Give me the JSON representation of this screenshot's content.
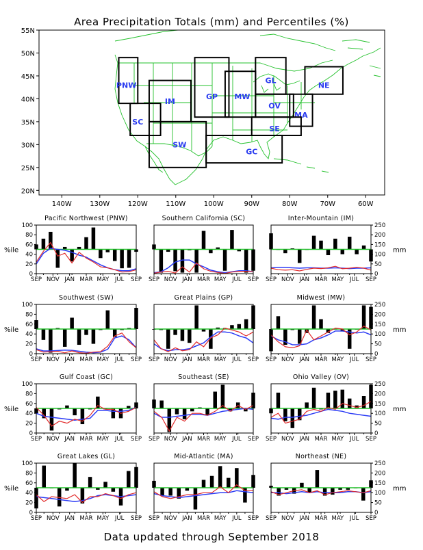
{
  "title": "Area Precipitation Totals (mm) and Percentiles (%)",
  "footer": "Data updated through September 2018",
  "map": {
    "lat_ticks": [
      "55N",
      "50N",
      "45N",
      "40N",
      "35N",
      "30N",
      "25N",
      "20N"
    ],
    "lon_ticks": [
      "140W",
      "130W",
      "120W",
      "110W",
      "100W",
      "90W",
      "80W",
      "70W",
      "60W"
    ],
    "lat_range": [
      19,
      55
    ],
    "lon_range": [
      -146,
      -55
    ],
    "regions": [
      {
        "code": "PNW",
        "lon": [
          -125,
          -120
        ],
        "lat": [
          39,
          49
        ],
        "label_at": [
          -123,
          43
        ]
      },
      {
        "code": "SC",
        "lon": [
          -122,
          -114
        ],
        "lat": [
          32,
          39
        ],
        "label_at": [
          -120,
          35
        ]
      },
      {
        "code": "IM",
        "lon": [
          -117,
          -106
        ],
        "lat": [
          35,
          44
        ],
        "label_at": [
          -111.5,
          39.5
        ]
      },
      {
        "code": "SW",
        "lon": [
          -117,
          -102
        ],
        "lat": [
          25,
          35
        ],
        "label_at": [
          -109,
          30
        ]
      },
      {
        "code": "GP",
        "lon": [
          -105,
          -96
        ],
        "lat": [
          36,
          49
        ],
        "label_at": [
          -100.5,
          40.5
        ]
      },
      {
        "code": "MW",
        "lon": [
          -97,
          -89
        ],
        "lat": [
          36,
          46
        ],
        "label_at": [
          -92.5,
          40.5
        ]
      },
      {
        "code": "GL",
        "lon": [
          -89,
          -81
        ],
        "lat": [
          41,
          49
        ],
        "label_at": [
          -85,
          44
        ]
      },
      {
        "code": "OV",
        "lon": [
          -89,
          -79
        ],
        "lat": [
          36,
          41
        ],
        "label_at": [
          -84,
          38.5
        ]
      },
      {
        "code": "NE",
        "lon": [
          -76,
          -66
        ],
        "lat": [
          41,
          47
        ],
        "label_at": [
          -71,
          43
        ]
      },
      {
        "code": "MA",
        "lon": [
          -80,
          -74
        ],
        "lat": [
          34,
          41
        ],
        "label_at": [
          -77,
          36.5
        ]
      },
      {
        "code": "SE",
        "lon": [
          -90,
          -77
        ],
        "lat": [
          32,
          36
        ],
        "label_at": [
          -84,
          33.5
        ]
      },
      {
        "code": "GC",
        "lon": [
          -102,
          -82
        ],
        "lat": [
          26,
          32
        ],
        "label_at": [
          -90,
          28.5
        ]
      }
    ]
  },
  "colors": {
    "percentile_bar": "#000000",
    "threshold": "#22c02a",
    "total": "#e22b2b",
    "normal": "#2c3cf5",
    "map_lines": "#22c02a",
    "region_label": "#2a3cf0"
  },
  "axis": {
    "ylabel_left": "%ile",
    "ylabel_right": "mm",
    "months": [
      "SEP",
      "NOV",
      "JAN",
      "MAR",
      "MAY",
      "JUL",
      "SEP"
    ],
    "left_ticks": [
      0,
      20,
      40,
      60,
      80,
      100
    ],
    "right_ticks": [
      0,
      50,
      100,
      150,
      200,
      250
    ]
  },
  "chart_data": [
    {
      "type": "bar",
      "title": "Pacific Northwest (PNW)",
      "percentile": [
        60,
        72,
        86,
        12,
        55,
        25,
        55,
        75,
        95,
        32,
        44,
        26,
        11,
        12,
        45
      ],
      "total_mm": [
        60,
        115,
        160,
        90,
        105,
        55,
        110,
        80,
        60,
        35,
        30,
        20,
        8,
        10,
        20
      ],
      "normal_mm": [
        50,
        105,
        130,
        125,
        120,
        110,
        95,
        85,
        65,
        45,
        30,
        20,
        15,
        15,
        25
      ]
    },
    {
      "type": "bar",
      "title": "Southern California (SC)",
      "percentile": [
        60,
        2,
        45,
        5,
        2,
        48,
        2,
        88,
        42,
        54,
        6,
        90,
        46,
        2,
        6
      ],
      "total_mm": [
        2,
        8,
        12,
        3,
        35,
        8,
        55,
        25,
        12,
        6,
        1,
        8,
        12,
        12,
        10
      ],
      "normal_mm": [
        5,
        10,
        30,
        60,
        70,
        70,
        50,
        35,
        18,
        10,
        5,
        10,
        15,
        15,
        10
      ],
      "right_ticks": false
    },
    {
      "type": "bar",
      "title": "Inter-Mountain (IM)",
      "percentile": [
        83,
        50,
        42,
        52,
        22,
        50,
        78,
        68,
        38,
        72,
        40,
        76,
        40,
        58,
        25
      ],
      "total_mm": [
        28,
        20,
        18,
        20,
        14,
        22,
        28,
        26,
        30,
        38,
        25,
        28,
        32,
        28,
        18
      ],
      "normal_mm": [
        30,
        32,
        32,
        30,
        28,
        30,
        30,
        28,
        28,
        30,
        28,
        26,
        28,
        28,
        30
      ]
    },
    {
      "type": "bar",
      "title": "Southwest (SW)",
      "percentile": [
        68,
        28,
        2,
        52,
        14,
        73,
        18,
        38,
        20,
        48,
        88,
        34,
        48,
        52,
        93
      ],
      "total_mm": [
        20,
        8,
        10,
        12,
        4,
        14,
        5,
        2,
        8,
        10,
        38,
        90,
        105,
        60,
        30
      ],
      "normal_mm": [
        25,
        14,
        14,
        16,
        18,
        17,
        12,
        8,
        5,
        8,
        22,
        80,
        90,
        70,
        30
      ]
    },
    {
      "type": "bar",
      "title": "Great Plains (GP)",
      "percentile": [
        50,
        48,
        10,
        38,
        26,
        22,
        98,
        45,
        10,
        53,
        52,
        58,
        60,
        70,
        98
      ],
      "total_mm": [
        70,
        25,
        10,
        30,
        15,
        20,
        60,
        35,
        80,
        95,
        130,
        120,
        110,
        90,
        110
      ],
      "normal_mm": [
        50,
        25,
        15,
        20,
        20,
        25,
        40,
        55,
        85,
        110,
        110,
        105,
        90,
        80,
        55
      ],
      "right_ticks": false
    },
    {
      "type": "bar",
      "title": "Midwest (MW)",
      "percentile": [
        5,
        76,
        18,
        48,
        20,
        42,
        98,
        70,
        42,
        50,
        45,
        10,
        50,
        98,
        95
      ],
      "total_mm": [
        95,
        60,
        35,
        30,
        40,
        120,
        70,
        90,
        110,
        130,
        125,
        95,
        110,
        140,
        120
      ],
      "normal_mm": [
        90,
        70,
        60,
        45,
        45,
        50,
        70,
        80,
        95,
        115,
        115,
        110,
        105,
        110,
        95
      ]
    },
    {
      "type": "bar",
      "title": "Gulf Coast (GC)",
      "percentile": [
        40,
        30,
        5,
        48,
        56,
        36,
        18,
        48,
        74,
        48,
        30,
        30,
        55,
        62
      ],
      "total_mm": [
        130,
        90,
        35,
        60,
        50,
        70,
        60,
        90,
        140,
        120,
        120,
        100,
        110,
        130
      ],
      "normal_mm": [
        100,
        85,
        80,
        75,
        70,
        65,
        70,
        75,
        115,
        115,
        110,
        110,
        115,
        130
      ]
    },
    {
      "type": "bar",
      "title": "Southeast (SE)",
      "percentile": [
        68,
        66,
        2,
        38,
        28,
        44,
        52,
        36,
        84,
        98,
        44,
        62,
        44,
        82
      ],
      "total_mm": [
        110,
        80,
        10,
        80,
        60,
        100,
        100,
        90,
        110,
        140,
        110,
        140,
        120,
        140
      ],
      "normal_mm": [
        100,
        80,
        80,
        85,
        90,
        95,
        95,
        90,
        100,
        110,
        115,
        120,
        125,
        120
      ],
      "right_ticks": false
    },
    {
      "type": "bar",
      "title": "Ohio Valley (OV)",
      "percentile": [
        40,
        82,
        24,
        10,
        26,
        62,
        92,
        48,
        82,
        86,
        88,
        70,
        56,
        75,
        98
      ],
      "total_mm": [
        80,
        100,
        50,
        60,
        70,
        110,
        120,
        110,
        130,
        120,
        150,
        140,
        130,
        140,
        160
      ],
      "normal_mm": [
        75,
        70,
        80,
        80,
        85,
        90,
        100,
        110,
        120,
        115,
        110,
        100,
        95,
        90,
        85
      ]
    },
    {
      "type": "bar",
      "title": "Great Lakes (GL)",
      "percentile": [
        8,
        95,
        50,
        12,
        44,
        100,
        18,
        72,
        46,
        62,
        42,
        14,
        84,
        92
      ],
      "total_mm": [
        90,
        55,
        80,
        75,
        70,
        90,
        50,
        80,
        80,
        95,
        85,
        70,
        90,
        100
      ],
      "normal_mm": [
        80,
        75,
        70,
        65,
        60,
        55,
        60,
        70,
        85,
        90,
        85,
        80,
        85,
        90
      ]
    },
    {
      "type": "bar",
      "title": "Mid-Atlantic (MA)",
      "percentile": [
        64,
        34,
        34,
        28,
        44,
        6,
        66,
        74,
        94,
        70,
        90,
        20,
        76
      ],
      "total_mm": [
        105,
        80,
        70,
        80,
        90,
        90,
        100,
        100,
        130,
        100,
        140,
        110,
        110
      ],
      "normal_mm": [
        95,
        85,
        80,
        75,
        80,
        85,
        90,
        95,
        100,
        100,
        110,
        105,
        100
      ],
      "right_ticks": false
    },
    {
      "type": "bar",
      "title": "Northeast (NE)",
      "percentile": [
        54,
        34,
        46,
        38,
        60,
        40,
        86,
        34,
        36,
        46,
        46,
        50,
        24,
        65
      ],
      "total_mm": [
        105,
        90,
        100,
        110,
        115,
        100,
        110,
        90,
        100,
        105,
        110,
        105,
        100,
        110
      ],
      "normal_mm": [
        100,
        100,
        95,
        100,
        105,
        100,
        105,
        100,
        100,
        100,
        105,
        105,
        100,
        105
      ]
    }
  ]
}
